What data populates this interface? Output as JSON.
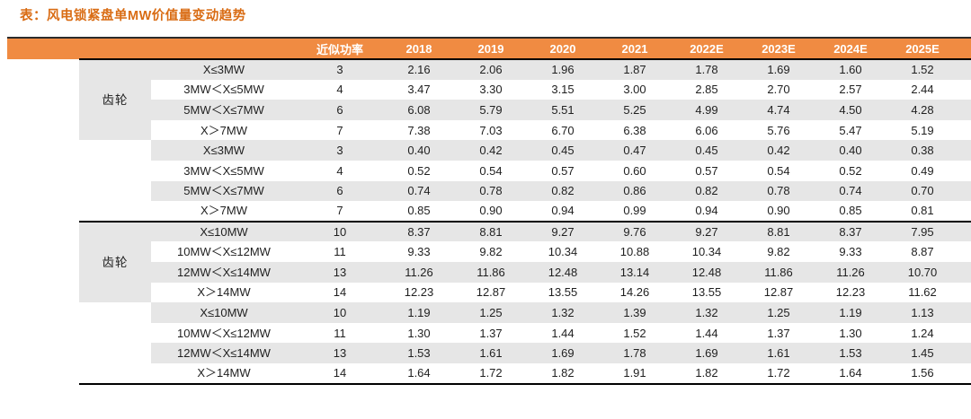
{
  "title": "表：风电锁紧盘单MW价值量变动趋势",
  "header": {
    "power_label": "近似功率",
    "years": [
      "2018",
      "2019",
      "2020",
      "2021",
      "2022E",
      "2023E",
      "2024E",
      "2025E"
    ]
  },
  "table": {
    "groups": [
      {
        "label": "齿轮",
        "rows": [
          {
            "range": "X≤3MW",
            "power": "3",
            "values": [
              "2.16",
              "2.06",
              "1.96",
              "1.87",
              "1.78",
              "1.69",
              "1.60",
              "1.52"
            ]
          },
          {
            "range": "3MW＜X≤5MW",
            "power": "4",
            "values": [
              "3.47",
              "3.30",
              "3.15",
              "3.00",
              "2.85",
              "2.70",
              "2.57",
              "2.44"
            ]
          },
          {
            "range": "5MW＜X≤7MW",
            "power": "6",
            "values": [
              "6.08",
              "5.79",
              "5.51",
              "5.25",
              "4.99",
              "4.74",
              "4.50",
              "4.28"
            ]
          },
          {
            "range": "X＞7MW",
            "power": "7",
            "values": [
              "7.38",
              "7.03",
              "6.70",
              "6.38",
              "6.06",
              "5.76",
              "5.47",
              "5.19"
            ]
          }
        ]
      },
      {
        "label": "",
        "rows": [
          {
            "range": "X≤3MW",
            "power": "3",
            "values": [
              "0.40",
              "0.42",
              "0.45",
              "0.47",
              "0.45",
              "0.42",
              "0.40",
              "0.38"
            ]
          },
          {
            "range": "3MW＜X≤5MW",
            "power": "4",
            "values": [
              "0.52",
              "0.54",
              "0.57",
              "0.60",
              "0.57",
              "0.54",
              "0.52",
              "0.49"
            ]
          },
          {
            "range": "5MW＜X≤7MW",
            "power": "6",
            "values": [
              "0.74",
              "0.78",
              "0.82",
              "0.86",
              "0.82",
              "0.78",
              "0.74",
              "0.70"
            ]
          },
          {
            "range": "X＞7MW",
            "power": "7",
            "values": [
              "0.85",
              "0.90",
              "0.94",
              "0.99",
              "0.94",
              "0.90",
              "0.85",
              "0.81"
            ]
          }
        ]
      },
      {
        "label": "齿轮",
        "rows": [
          {
            "range": "X≤10MW",
            "power": "10",
            "values": [
              "8.37",
              "8.81",
              "9.27",
              "9.76",
              "9.27",
              "8.81",
              "8.37",
              "7.95"
            ]
          },
          {
            "range": "10MW＜X≤12MW",
            "power": "11",
            "values": [
              "9.33",
              "9.82",
              "10.34",
              "10.88",
              "10.34",
              "9.82",
              "9.33",
              "8.87"
            ]
          },
          {
            "range": "12MW＜X≤14MW",
            "power": "13",
            "values": [
              "11.26",
              "11.86",
              "12.48",
              "13.14",
              "12.48",
              "11.86",
              "11.26",
              "10.70"
            ]
          },
          {
            "range": "X＞14MW",
            "power": "14",
            "values": [
              "12.23",
              "12.87",
              "13.55",
              "14.26",
              "13.55",
              "12.87",
              "12.23",
              "11.62"
            ]
          }
        ]
      },
      {
        "label": "",
        "rows": [
          {
            "range": "X≤10MW",
            "power": "10",
            "values": [
              "1.19",
              "1.25",
              "1.32",
              "1.39",
              "1.32",
              "1.25",
              "1.19",
              "1.13"
            ]
          },
          {
            "range": "10MW＜X≤12MW",
            "power": "11",
            "values": [
              "1.30",
              "1.37",
              "1.44",
              "1.52",
              "1.44",
              "1.37",
              "1.30",
              "1.24"
            ]
          },
          {
            "range": "12MW＜X≤14MW",
            "power": "13",
            "values": [
              "1.53",
              "1.61",
              "1.69",
              "1.78",
              "1.69",
              "1.61",
              "1.53",
              "1.45"
            ]
          },
          {
            "range": "X＞14MW",
            "power": "14",
            "values": [
              "1.64",
              "1.72",
              "1.82",
              "1.91",
              "1.82",
              "1.72",
              "1.64",
              "1.56"
            ]
          }
        ]
      }
    ]
  },
  "colors": {
    "header_orange": "#F08B42",
    "title_orange": "#D96C14",
    "row_gray": "#E6E6E6",
    "border_black": "#000000",
    "header_text": "#FFFFFF",
    "body_text": "#1F1F1F"
  }
}
